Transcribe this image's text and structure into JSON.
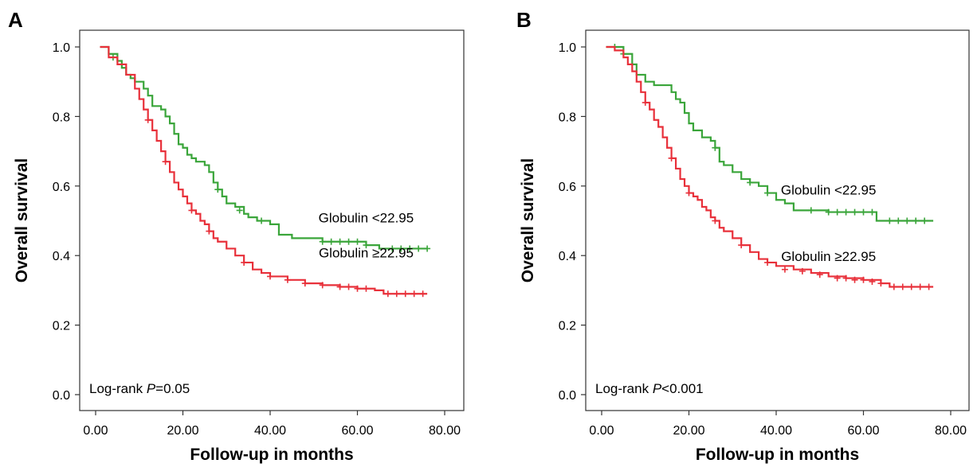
{
  "chart_data": [
    {
      "panel": "A",
      "type": "line",
      "xlabel": "Follow-up in months",
      "ylabel": "Overall survival",
      "xlim": [
        0,
        80
      ],
      "ylim": [
        0,
        1.0
      ],
      "xticks": [
        "0.00",
        "20.00",
        "40.00",
        "60.00",
        "80.00"
      ],
      "yticks": [
        "0.0",
        "0.2",
        "0.4",
        "0.6",
        "0.8",
        "1.0"
      ],
      "grid": false,
      "annotation_prefix": "Log-rank ",
      "annotation_p": "P",
      "annotation_value": "=0.05",
      "series": [
        {
          "name": "Globulin <22.95",
          "color": "#3aa53a",
          "label_pos": [
            62,
            0.495
          ],
          "x": [
            1,
            3,
            5,
            6,
            7,
            8,
            9,
            11,
            12,
            13,
            15,
            16,
            17,
            18,
            19,
            20,
            21,
            22,
            23,
            24,
            25,
            26,
            27,
            28,
            29,
            30,
            32,
            34,
            35,
            37,
            40,
            42,
            45,
            48,
            52,
            56,
            60,
            62,
            65,
            66,
            70,
            76
          ],
          "y": [
            1.0,
            0.98,
            0.96,
            0.94,
            0.92,
            0.91,
            0.9,
            0.88,
            0.86,
            0.83,
            0.82,
            0.8,
            0.78,
            0.75,
            0.72,
            0.71,
            0.69,
            0.68,
            0.67,
            0.67,
            0.66,
            0.64,
            0.61,
            0.59,
            0.57,
            0.55,
            0.54,
            0.52,
            0.51,
            0.5,
            0.49,
            0.46,
            0.45,
            0.45,
            0.44,
            0.44,
            0.44,
            0.43,
            0.42,
            0.42,
            0.42,
            0.42
          ],
          "censors": [
            [
              4,
              0.97
            ],
            [
              28,
              0.59
            ],
            [
              33,
              0.53
            ],
            [
              38,
              0.5
            ],
            [
              52,
              0.44
            ],
            [
              54,
              0.44
            ],
            [
              56,
              0.44
            ],
            [
              58,
              0.44
            ],
            [
              60,
              0.44
            ],
            [
              62,
              0.43
            ],
            [
              68,
              0.42
            ],
            [
              70,
              0.42
            ],
            [
              72,
              0.42
            ],
            [
              74,
              0.42
            ],
            [
              76,
              0.42
            ]
          ]
        },
        {
          "name": "Globulin ≥22.95",
          "color": "#e8303a",
          "label_pos": [
            62,
            0.395
          ],
          "x": [
            1,
            3,
            5,
            7,
            9,
            10,
            11,
            12,
            13,
            14,
            15,
            16,
            17,
            18,
            19,
            20,
            21,
            22,
            23,
            24,
            25,
            26,
            27,
            28,
            30,
            32,
            34,
            36,
            38,
            40,
            44,
            48,
            52,
            56,
            60,
            64,
            66,
            70,
            76
          ],
          "y": [
            1.0,
            0.97,
            0.95,
            0.92,
            0.88,
            0.85,
            0.82,
            0.79,
            0.76,
            0.73,
            0.7,
            0.67,
            0.64,
            0.61,
            0.59,
            0.57,
            0.55,
            0.53,
            0.52,
            0.5,
            0.49,
            0.47,
            0.45,
            0.44,
            0.42,
            0.4,
            0.38,
            0.36,
            0.35,
            0.34,
            0.33,
            0.32,
            0.315,
            0.31,
            0.305,
            0.3,
            0.29,
            0.29,
            0.29
          ],
          "censors": [
            [
              12,
              0.79
            ],
            [
              16,
              0.67
            ],
            [
              22,
              0.53
            ],
            [
              26,
              0.47
            ],
            [
              34,
              0.38
            ],
            [
              40,
              0.34
            ],
            [
              44,
              0.33
            ],
            [
              48,
              0.32
            ],
            [
              52,
              0.315
            ],
            [
              56,
              0.31
            ],
            [
              58,
              0.31
            ],
            [
              60,
              0.305
            ],
            [
              62,
              0.305
            ],
            [
              67,
              0.29
            ],
            [
              69,
              0.29
            ],
            [
              71,
              0.29
            ],
            [
              73,
              0.29
            ],
            [
              75,
              0.29
            ]
          ]
        }
      ]
    },
    {
      "panel": "B",
      "type": "line",
      "xlabel": "Follow-up in months",
      "ylabel": "Overall survival",
      "xlim": [
        0,
        80
      ],
      "ylim": [
        0,
        1.0
      ],
      "xticks": [
        "0.00",
        "20.00",
        "40.00",
        "60.00",
        "80.00"
      ],
      "yticks": [
        "0.0",
        "0.2",
        "0.4",
        "0.6",
        "0.8",
        "1.0"
      ],
      "grid": false,
      "annotation_prefix": "Log-rank ",
      "annotation_p": "P",
      "annotation_value": "<0.001",
      "series": [
        {
          "name": "Globulin <22.95",
          "color": "#3aa53a",
          "label_pos": [
            52,
            0.575
          ],
          "x": [
            1,
            3,
            5,
            7,
            8,
            10,
            12,
            14,
            16,
            17,
            18,
            19,
            20,
            21,
            23,
            25,
            26,
            27,
            28,
            30,
            32,
            34,
            36,
            38,
            40,
            42,
            44,
            48,
            52,
            56,
            60,
            62,
            63,
            64,
            66,
            70,
            76
          ],
          "y": [
            1.0,
            1.0,
            0.98,
            0.95,
            0.92,
            0.9,
            0.89,
            0.89,
            0.87,
            0.85,
            0.84,
            0.81,
            0.78,
            0.76,
            0.74,
            0.73,
            0.71,
            0.67,
            0.66,
            0.64,
            0.62,
            0.61,
            0.6,
            0.58,
            0.56,
            0.55,
            0.53,
            0.53,
            0.525,
            0.525,
            0.525,
            0.525,
            0.5,
            0.5,
            0.5,
            0.5,
            0.5
          ],
          "censors": [
            [
              3,
              1.0
            ],
            [
              5,
              0.98
            ],
            [
              26,
              0.71
            ],
            [
              34,
              0.61
            ],
            [
              38,
              0.58
            ],
            [
              48,
              0.53
            ],
            [
              52,
              0.525
            ],
            [
              54,
              0.525
            ],
            [
              56,
              0.525
            ],
            [
              58,
              0.525
            ],
            [
              60,
              0.525
            ],
            [
              62,
              0.525
            ],
            [
              66,
              0.5
            ],
            [
              68,
              0.5
            ],
            [
              70,
              0.5
            ],
            [
              72,
              0.5
            ],
            [
              74,
              0.5
            ]
          ]
        },
        {
          "name": "Globulin ≥22.95",
          "color": "#e8303a",
          "label_pos": [
            52,
            0.385
          ],
          "x": [
            1,
            3,
            5,
            6,
            7,
            8,
            9,
            10,
            11,
            12,
            13,
            14,
            15,
            16,
            17,
            18,
            19,
            20,
            21,
            22,
            23,
            24,
            25,
            26,
            27,
            28,
            30,
            32,
            34,
            36,
            38,
            40,
            44,
            48,
            52,
            56,
            60,
            64,
            66,
            70,
            76
          ],
          "y": [
            1.0,
            0.99,
            0.97,
            0.95,
            0.93,
            0.9,
            0.87,
            0.84,
            0.82,
            0.79,
            0.77,
            0.74,
            0.71,
            0.68,
            0.65,
            0.62,
            0.6,
            0.58,
            0.57,
            0.56,
            0.54,
            0.53,
            0.51,
            0.5,
            0.48,
            0.47,
            0.45,
            0.43,
            0.41,
            0.39,
            0.38,
            0.37,
            0.36,
            0.35,
            0.34,
            0.335,
            0.33,
            0.32,
            0.31,
            0.31,
            0.31
          ],
          "censors": [
            [
              10,
              0.84
            ],
            [
              16,
              0.68
            ],
            [
              20,
              0.58
            ],
            [
              26,
              0.5
            ],
            [
              32,
              0.43
            ],
            [
              38,
              0.38
            ],
            [
              42,
              0.36
            ],
            [
              46,
              0.355
            ],
            [
              50,
              0.345
            ],
            [
              54,
              0.335
            ],
            [
              56,
              0.335
            ],
            [
              58,
              0.33
            ],
            [
              60,
              0.33
            ],
            [
              62,
              0.325
            ],
            [
              64,
              0.32
            ],
            [
              67,
              0.31
            ],
            [
              69,
              0.31
            ],
            [
              71,
              0.31
            ],
            [
              73,
              0.31
            ],
            [
              75,
              0.31
            ]
          ]
        }
      ]
    }
  ]
}
